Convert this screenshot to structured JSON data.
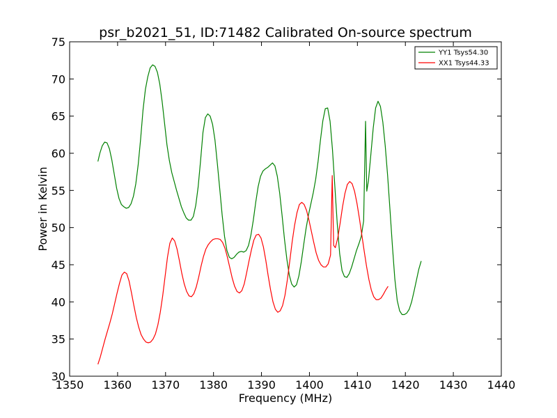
{
  "chart_data": {
    "type": "line",
    "title": "psr_b2021_51, ID:71482 Calibrated On-source spectrum",
    "xlabel": "Frequency (MHz)",
    "ylabel": "Power in Kelvin",
    "xlim": [
      1350,
      1440
    ],
    "ylim": [
      30,
      75
    ],
    "xticks": [
      "1350",
      "1360",
      "1370",
      "1380",
      "1390",
      "1400",
      "1410",
      "1420",
      "1430",
      "1440"
    ],
    "yticks": [
      "30",
      "35",
      "40",
      "45",
      "50",
      "55",
      "60",
      "65",
      "70",
      "75"
    ],
    "grid": false,
    "legend": "top-right",
    "series": [
      {
        "name": "YY1 Tsys54.30",
        "color": "#008000",
        "points": [
          [
            1355.9,
            58.9
          ],
          [
            1356.3,
            60.0
          ],
          [
            1356.8,
            61.0
          ],
          [
            1357.3,
            61.5
          ],
          [
            1357.8,
            61.4
          ],
          [
            1358.3,
            60.6
          ],
          [
            1358.8,
            59.1
          ],
          [
            1359.3,
            57.2
          ],
          [
            1359.8,
            55.3
          ],
          [
            1360.3,
            53.9
          ],
          [
            1360.8,
            53.1
          ],
          [
            1361.3,
            52.8
          ],
          [
            1361.8,
            52.6
          ],
          [
            1362.3,
            52.7
          ],
          [
            1362.8,
            53.2
          ],
          [
            1363.3,
            54.2
          ],
          [
            1363.8,
            55.9
          ],
          [
            1364.3,
            58.5
          ],
          [
            1364.8,
            61.9
          ],
          [
            1365.3,
            65.8
          ],
          [
            1365.8,
            68.6
          ],
          [
            1366.3,
            70.3
          ],
          [
            1366.8,
            71.5
          ],
          [
            1367.3,
            71.9
          ],
          [
            1367.8,
            71.7
          ],
          [
            1368.3,
            70.9
          ],
          [
            1368.8,
            69.3
          ],
          [
            1369.3,
            66.9
          ],
          [
            1369.8,
            64.0
          ],
          [
            1370.3,
            61.1
          ],
          [
            1370.8,
            59.0
          ],
          [
            1371.3,
            57.4
          ],
          [
            1371.8,
            56.2
          ],
          [
            1372.3,
            55.0
          ],
          [
            1372.8,
            53.9
          ],
          [
            1373.3,
            52.8
          ],
          [
            1373.8,
            52.0
          ],
          [
            1374.3,
            51.3
          ],
          [
            1374.8,
            51.0
          ],
          [
            1375.3,
            51.0
          ],
          [
            1375.8,
            51.5
          ],
          [
            1376.3,
            53.0
          ],
          [
            1376.8,
            55.5
          ],
          [
            1377.3,
            59.0
          ],
          [
            1377.8,
            62.8
          ],
          [
            1378.3,
            64.8
          ],
          [
            1378.8,
            65.3
          ],
          [
            1379.3,
            65.0
          ],
          [
            1379.8,
            63.9
          ],
          [
            1380.3,
            61.8
          ],
          [
            1380.8,
            58.6
          ],
          [
            1381.3,
            55.2
          ],
          [
            1381.8,
            51.7
          ],
          [
            1382.3,
            48.8
          ],
          [
            1382.8,
            46.9
          ],
          [
            1383.3,
            46.0
          ],
          [
            1383.8,
            45.8
          ],
          [
            1384.3,
            46.0
          ],
          [
            1384.8,
            46.4
          ],
          [
            1385.3,
            46.7
          ],
          [
            1385.8,
            46.8
          ],
          [
            1386.3,
            46.7
          ],
          [
            1386.8,
            46.9
          ],
          [
            1387.3,
            47.6
          ],
          [
            1387.8,
            49.0
          ],
          [
            1388.3,
            51.0
          ],
          [
            1388.8,
            53.4
          ],
          [
            1389.3,
            55.5
          ],
          [
            1389.8,
            56.9
          ],
          [
            1390.3,
            57.6
          ],
          [
            1390.8,
            57.9
          ],
          [
            1391.3,
            58.1
          ],
          [
            1391.8,
            58.4
          ],
          [
            1392.3,
            58.7
          ],
          [
            1392.8,
            58.3
          ],
          [
            1393.3,
            56.9
          ],
          [
            1393.8,
            54.6
          ],
          [
            1394.3,
            51.6
          ],
          [
            1394.8,
            48.4
          ],
          [
            1395.3,
            45.7
          ],
          [
            1395.8,
            43.6
          ],
          [
            1396.3,
            42.4
          ],
          [
            1396.8,
            42.0
          ],
          [
            1397.3,
            42.3
          ],
          [
            1397.8,
            43.5
          ],
          [
            1398.3,
            45.4
          ],
          [
            1398.8,
            47.7
          ],
          [
            1399.3,
            49.9
          ],
          [
            1399.8,
            51.7
          ],
          [
            1400.3,
            53.2
          ],
          [
            1400.8,
            54.7
          ],
          [
            1401.3,
            56.5
          ],
          [
            1401.8,
            58.9
          ],
          [
            1402.3,
            61.8
          ],
          [
            1402.8,
            64.4
          ],
          [
            1403.3,
            66.0
          ],
          [
            1403.8,
            66.1
          ],
          [
            1404.3,
            64.3
          ],
          [
            1404.8,
            60.5
          ],
          [
            1405.3,
            55.5
          ],
          [
            1405.8,
            50.5
          ],
          [
            1406.3,
            46.5
          ],
          [
            1406.8,
            44.2
          ],
          [
            1407.3,
            43.4
          ],
          [
            1407.8,
            43.3
          ],
          [
            1408.3,
            43.8
          ],
          [
            1408.8,
            44.7
          ],
          [
            1409.3,
            45.8
          ],
          [
            1409.8,
            46.9
          ],
          [
            1410.3,
            47.8
          ],
          [
            1410.8,
            48.8
          ],
          [
            1411.3,
            50.9
          ],
          [
            1411.7,
            64.3
          ],
          [
            1411.95,
            54.9
          ],
          [
            1412.3,
            56.3
          ],
          [
            1412.8,
            59.8
          ],
          [
            1413.3,
            63.4
          ],
          [
            1413.8,
            66.1
          ],
          [
            1414.3,
            67.0
          ],
          [
            1414.8,
            66.3
          ],
          [
            1415.3,
            64.2
          ],
          [
            1415.8,
            61.0
          ],
          [
            1416.3,
            57.0
          ],
          [
            1416.8,
            52.3
          ],
          [
            1417.3,
            47.5
          ],
          [
            1417.8,
            43.1
          ],
          [
            1418.3,
            40.2
          ],
          [
            1418.8,
            38.8
          ],
          [
            1419.3,
            38.3
          ],
          [
            1419.8,
            38.3
          ],
          [
            1420.3,
            38.5
          ],
          [
            1420.8,
            39.0
          ],
          [
            1421.3,
            40.0
          ],
          [
            1421.8,
            41.4
          ],
          [
            1422.3,
            42.9
          ],
          [
            1422.8,
            44.4
          ],
          [
            1423.3,
            45.5
          ]
        ]
      },
      {
        "name": "XX1 Tsys44.33",
        "color": "#ff0000",
        "points": [
          [
            1355.9,
            31.6
          ],
          [
            1356.4,
            32.6
          ],
          [
            1356.9,
            33.8
          ],
          [
            1357.4,
            35.0
          ],
          [
            1357.9,
            36.1
          ],
          [
            1358.4,
            37.2
          ],
          [
            1358.9,
            38.4
          ],
          [
            1359.4,
            39.8
          ],
          [
            1359.9,
            41.2
          ],
          [
            1360.4,
            42.5
          ],
          [
            1360.9,
            43.6
          ],
          [
            1361.4,
            44.0
          ],
          [
            1361.9,
            43.8
          ],
          [
            1362.4,
            42.8
          ],
          [
            1362.9,
            41.2
          ],
          [
            1363.4,
            39.5
          ],
          [
            1363.9,
            37.9
          ],
          [
            1364.4,
            36.6
          ],
          [
            1364.9,
            35.6
          ],
          [
            1365.4,
            35.0
          ],
          [
            1365.9,
            34.6
          ],
          [
            1366.4,
            34.5
          ],
          [
            1366.9,
            34.6
          ],
          [
            1367.4,
            35.0
          ],
          [
            1367.9,
            35.7
          ],
          [
            1368.4,
            36.9
          ],
          [
            1368.9,
            38.6
          ],
          [
            1369.4,
            40.8
          ],
          [
            1369.9,
            43.4
          ],
          [
            1370.4,
            46.0
          ],
          [
            1370.9,
            47.9
          ],
          [
            1371.4,
            48.6
          ],
          [
            1371.9,
            48.2
          ],
          [
            1372.4,
            47.1
          ],
          [
            1372.9,
            45.5
          ],
          [
            1373.4,
            43.8
          ],
          [
            1373.9,
            42.4
          ],
          [
            1374.4,
            41.4
          ],
          [
            1374.9,
            40.8
          ],
          [
            1375.4,
            40.7
          ],
          [
            1375.9,
            41.1
          ],
          [
            1376.4,
            42.0
          ],
          [
            1376.9,
            43.3
          ],
          [
            1377.4,
            44.8
          ],
          [
            1377.9,
            46.1
          ],
          [
            1378.4,
            47.1
          ],
          [
            1378.9,
            47.7
          ],
          [
            1379.4,
            48.1
          ],
          [
            1379.9,
            48.4
          ],
          [
            1380.4,
            48.5
          ],
          [
            1380.9,
            48.5
          ],
          [
            1381.4,
            48.4
          ],
          [
            1381.9,
            48.0
          ],
          [
            1382.4,
            47.2
          ],
          [
            1382.9,
            46.0
          ],
          [
            1383.4,
            44.6
          ],
          [
            1383.9,
            43.2
          ],
          [
            1384.4,
            42.1
          ],
          [
            1384.9,
            41.4
          ],
          [
            1385.4,
            41.2
          ],
          [
            1385.9,
            41.5
          ],
          [
            1386.4,
            42.4
          ],
          [
            1386.9,
            43.9
          ],
          [
            1387.4,
            45.5
          ],
          [
            1387.9,
            47.0
          ],
          [
            1388.4,
            48.3
          ],
          [
            1388.9,
            49.0
          ],
          [
            1389.4,
            49.1
          ],
          [
            1389.9,
            48.6
          ],
          [
            1390.4,
            47.4
          ],
          [
            1390.9,
            45.6
          ],
          [
            1391.4,
            43.5
          ],
          [
            1391.9,
            41.6
          ],
          [
            1392.4,
            40.0
          ],
          [
            1392.9,
            39.0
          ],
          [
            1393.4,
            38.6
          ],
          [
            1393.9,
            38.8
          ],
          [
            1394.4,
            39.5
          ],
          [
            1394.9,
            40.9
          ],
          [
            1395.4,
            43.0
          ],
          [
            1395.9,
            45.5
          ],
          [
            1396.4,
            48.1
          ],
          [
            1396.9,
            50.3
          ],
          [
            1397.4,
            52.0
          ],
          [
            1397.9,
            53.1
          ],
          [
            1398.4,
            53.4
          ],
          [
            1398.9,
            53.1
          ],
          [
            1399.4,
            52.3
          ],
          [
            1399.9,
            51.0
          ],
          [
            1400.4,
            49.5
          ],
          [
            1400.9,
            48.0
          ],
          [
            1401.4,
            46.6
          ],
          [
            1401.9,
            45.6
          ],
          [
            1402.4,
            45.0
          ],
          [
            1402.9,
            44.7
          ],
          [
            1403.4,
            44.7
          ],
          [
            1403.9,
            45.1
          ],
          [
            1404.4,
            46.3
          ],
          [
            1404.75,
            57.0
          ],
          [
            1405.05,
            47.6
          ],
          [
            1405.4,
            47.3
          ],
          [
            1405.9,
            48.6
          ],
          [
            1406.4,
            50.6
          ],
          [
            1406.9,
            52.8
          ],
          [
            1407.4,
            54.6
          ],
          [
            1407.9,
            55.8
          ],
          [
            1408.4,
            56.2
          ],
          [
            1408.9,
            55.9
          ],
          [
            1409.4,
            54.9
          ],
          [
            1409.9,
            53.3
          ],
          [
            1410.4,
            51.3
          ],
          [
            1410.9,
            49.1
          ],
          [
            1411.4,
            46.9
          ],
          [
            1411.9,
            44.8
          ],
          [
            1412.4,
            43.0
          ],
          [
            1412.9,
            41.6
          ],
          [
            1413.4,
            40.7
          ],
          [
            1413.9,
            40.3
          ],
          [
            1414.4,
            40.3
          ],
          [
            1414.9,
            40.5
          ],
          [
            1415.4,
            41.0
          ],
          [
            1415.9,
            41.6
          ],
          [
            1416.4,
            42.1
          ]
        ]
      }
    ]
  }
}
